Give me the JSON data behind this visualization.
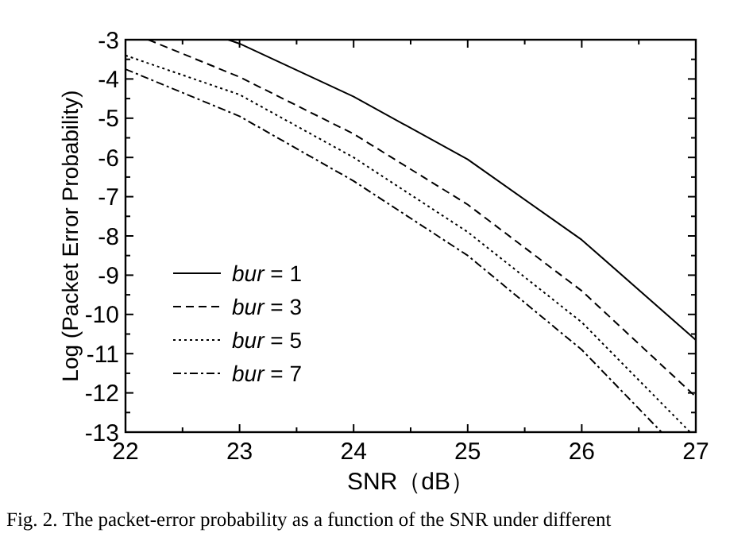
{
  "chart_data": {
    "type": "line",
    "xlabel": "SNR（dB）",
    "ylabel": "Log (Packet Error Probability)",
    "xlim": [
      22,
      27
    ],
    "xticks": [
      22,
      23,
      24,
      25,
      26,
      27
    ],
    "ylim": [
      -13,
      -3
    ],
    "yticks": [
      -3,
      -4,
      -5,
      -6,
      -7,
      -8,
      -9,
      -10,
      -11,
      -12,
      -13
    ],
    "legend": "bottom left",
    "grid": false,
    "annotations": [
      "Fig. 2.  The packet-error probability as a function of the SNR under different"
    ],
    "series": [
      {
        "name": "bur = 1",
        "color": "#000000",
        "line_style": "solid",
        "x": [
          22.9,
          23,
          24,
          25,
          26,
          27
        ],
        "values": [
          -3,
          -3.1,
          -4.45,
          -6.05,
          -8.1,
          -10.65
        ]
      },
      {
        "name": "bur = 3",
        "color": "#000000",
        "line_style": "dashed",
        "x": [
          22.2,
          23,
          24,
          25,
          26,
          27
        ],
        "values": [
          -3,
          -3.95,
          -5.4,
          -7.2,
          -9.4,
          -12.1
        ]
      },
      {
        "name": "bur = 5",
        "color": "#000000",
        "line_style": "dotted",
        "x": [
          22,
          23,
          24,
          25,
          26,
          26.95
        ],
        "values": [
          -3.4,
          -4.4,
          -6.0,
          -7.9,
          -10.2,
          -13
        ]
      },
      {
        "name": "bur = 7",
        "color": "#000000",
        "line_style": "dashdot",
        "x": [
          22,
          23,
          24,
          25,
          26,
          26.7
        ],
        "values": [
          -3.75,
          -4.95,
          -6.6,
          -8.5,
          -10.9,
          -13
        ]
      }
    ]
  }
}
